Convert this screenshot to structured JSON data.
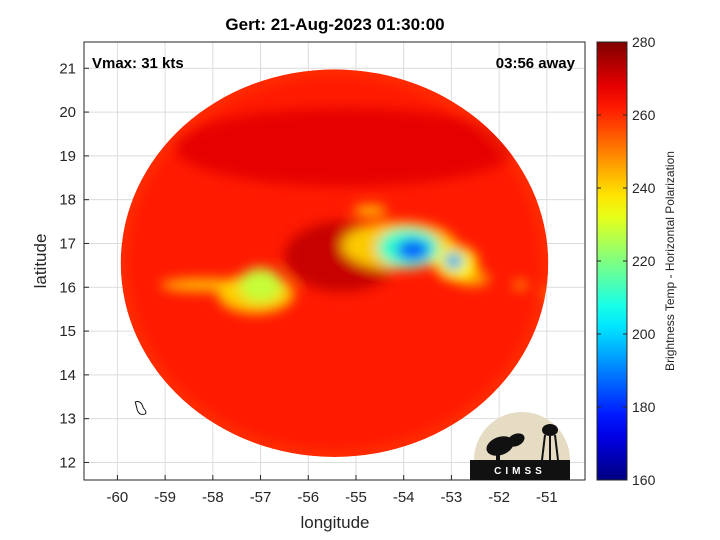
{
  "chart_data": {
    "type": "heatmap",
    "title": "Gert: 21-Aug-2023 01:30:00",
    "xlabel": "longitude",
    "ylabel": "latitude",
    "xlim": [
      -60.7,
      -50.2
    ],
    "ylim": [
      11.6,
      21.6
    ],
    "xticks": [
      -60,
      -59,
      -58,
      -57,
      -56,
      -55,
      -54,
      -53,
      -52,
      -51
    ],
    "yticks": [
      12,
      13,
      14,
      15,
      16,
      17,
      18,
      19,
      20,
      21
    ],
    "grid": true,
    "annotations": {
      "top_left": "Vmax: 31 kts",
      "top_right": "03:56 away"
    },
    "colorbar": {
      "label": "Brightness Temp - Horizontal Polarization",
      "range": [
        160,
        280
      ],
      "ticks": [
        160,
        180,
        200,
        220,
        240,
        260,
        280
      ],
      "colormap": "jet"
    },
    "swath": {
      "center_lon": -55.45,
      "center_lat": 16.55,
      "radius_deg": 5.6,
      "background_value": 262
    },
    "features": [
      {
        "name": "eastern-convection-core",
        "lon": -53.8,
        "lat": 16.85,
        "rx": 0.35,
        "ry": 0.25,
        "value": 185
      },
      {
        "name": "eastern-convection-mid",
        "lon": -53.9,
        "lat": 16.9,
        "rx": 0.65,
        "ry": 0.45,
        "value": 210
      },
      {
        "name": "eastern-convection-outer",
        "lon": -54.1,
        "lat": 16.95,
        "rx": 1.2,
        "ry": 0.55,
        "value": 240
      },
      {
        "name": "eastern-small-cell",
        "lon": -52.95,
        "lat": 16.6,
        "rx": 0.2,
        "ry": 0.2,
        "value": 195
      },
      {
        "name": "eastern-small-cell-halo",
        "lon": -52.9,
        "lat": 16.55,
        "rx": 0.45,
        "ry": 0.4,
        "value": 235
      },
      {
        "name": "northern-band",
        "lon": -54.7,
        "lat": 17.75,
        "rx": 0.35,
        "ry": 0.12,
        "value": 240
      },
      {
        "name": "eastern-tail",
        "lon": -52.55,
        "lat": 16.2,
        "rx": 0.35,
        "ry": 0.18,
        "value": 245
      },
      {
        "name": "western-convection-mid",
        "lon": -57.0,
        "lat": 16.05,
        "rx": 0.45,
        "ry": 0.4,
        "value": 228
      },
      {
        "name": "western-convection-outer",
        "lon": -57.1,
        "lat": 15.85,
        "rx": 0.8,
        "ry": 0.45,
        "value": 240
      },
      {
        "name": "western-band",
        "lon": -58.2,
        "lat": 16.05,
        "rx": 0.9,
        "ry": 0.15,
        "value": 242
      },
      {
        "name": "far-east-cell-1",
        "lon": -51.55,
        "lat": 16.05,
        "rx": 0.15,
        "ry": 0.1,
        "value": 245
      },
      {
        "name": "far-east-cell-2",
        "lon": -50.95,
        "lat": 15.85,
        "rx": 0.12,
        "ry": 0.1,
        "value": 245
      },
      {
        "name": "eye-cold-area",
        "lon": -55.3,
        "lat": 16.7,
        "rx": 1.2,
        "ry": 0.8,
        "value": 272
      },
      {
        "name": "northern-arc",
        "lon": -55.2,
        "lat": 19.2,
        "rx": 3.6,
        "ry": 0.9,
        "value": 268
      }
    ],
    "coastline": "Barbados outline near -59.5, 13.2"
  },
  "logo": {
    "text": "CIMSS"
  },
  "colors": {
    "frame": "#262626",
    "grid": "#dcdcdc",
    "background": "#ffffff"
  }
}
